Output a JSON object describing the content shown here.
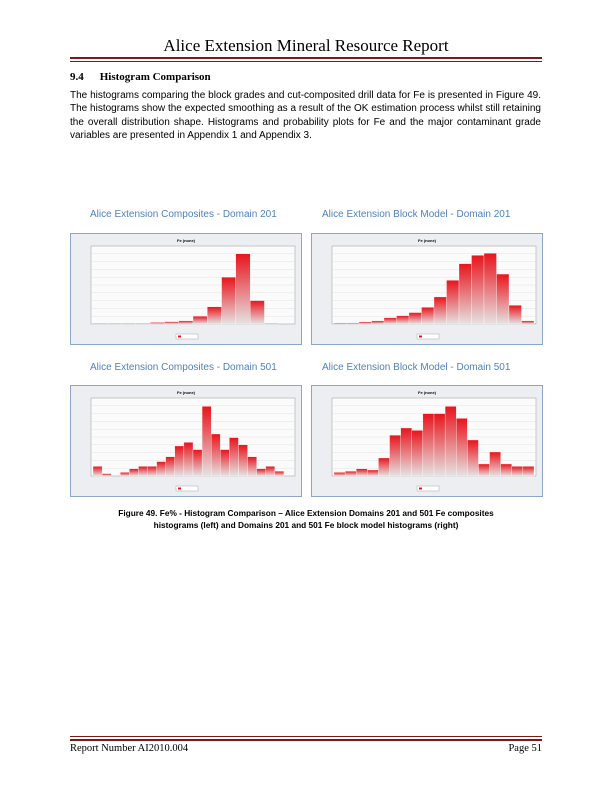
{
  "header": {
    "title": "Alice Extension Mineral Resource Report"
  },
  "section": {
    "number": "9.4",
    "heading": "Histogram Comparison",
    "paragraph": "The histograms comparing the block grades and cut-composited drill data for Fe is presented in Figure 49. The histograms show the expected smoothing as a result of the OK estimation process whilst still retaining the overall distribution shape. Histograms and probability plots for Fe and the major contaminant grade variables are presented in Appendix 1 and Appendix 3."
  },
  "chart_data": [
    {
      "type": "bar",
      "title": "Alice Extension Composites - Domain 201",
      "subtitle": "Fe (none)",
      "color": "#e8141c",
      "categories": [
        null,
        null,
        null,
        null,
        null,
        null,
        null,
        null,
        null,
        null,
        null,
        null,
        null,
        null
      ],
      "values": [
        1,
        1,
        1,
        1,
        2,
        3,
        4,
        10,
        22,
        60,
        90,
        30,
        1,
        0
      ],
      "ylim": [
        0,
        100
      ]
    },
    {
      "type": "bar",
      "title": "Alice Extension Block Model - Domain 201",
      "subtitle": "Fe (none)",
      "color": "#e8141c",
      "categories": [
        null,
        null,
        null,
        null,
        null,
        null,
        null,
        null,
        null,
        null,
        null,
        null,
        null,
        null,
        null,
        null
      ],
      "values": [
        1,
        1,
        2,
        3,
        6,
        8,
        11,
        16,
        26,
        42,
        58,
        66,
        68,
        48,
        18,
        3
      ],
      "ylim": [
        0,
        75
      ]
    },
    {
      "type": "bar",
      "title": "Alice Extension Composites - Domain 501",
      "subtitle": "Fe (none)",
      "color": "#e8141c",
      "categories": [
        null,
        null,
        null,
        null,
        null,
        null,
        null,
        null,
        null,
        null,
        null,
        null,
        null,
        null,
        null,
        null,
        null,
        null,
        null,
        null,
        null,
        null
      ],
      "values": [
        8,
        2,
        0,
        3,
        6,
        8,
        8,
        12,
        16,
        25,
        28,
        22,
        58,
        35,
        22,
        32,
        26,
        16,
        6,
        8,
        4,
        0
      ],
      "ylim": [
        0,
        65
      ]
    },
    {
      "type": "bar",
      "title": "Alice Extension Block Model - Domain 501",
      "subtitle": "Fe (none)",
      "color": "#e8141c",
      "categories": [
        null,
        null,
        null,
        null,
        null,
        null,
        null,
        null,
        null,
        null,
        null,
        null,
        null,
        null,
        null,
        null,
        null,
        null
      ],
      "values": [
        3,
        4,
        6,
        5,
        15,
        34,
        40,
        38,
        52,
        52,
        58,
        48,
        30,
        10,
        20,
        10,
        8,
        8
      ],
      "ylim": [
        0,
        65
      ]
    }
  ],
  "caption": "Figure 49. Fe% - Histogram Comparison – Alice Extension Domains 201 and 501 Fe composites histograms (left) and Domains 201 and 501 Fe block model histograms (right)",
  "footer": {
    "left": "Report Number AI2010.004",
    "right": "Page 51"
  }
}
